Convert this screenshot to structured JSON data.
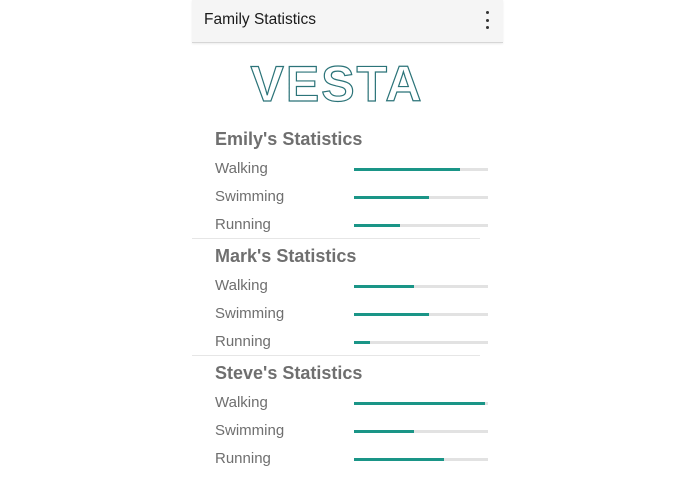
{
  "appbar": {
    "title": "Family Statistics",
    "menu_icon": "more-vert-icon"
  },
  "logo": {
    "text": "VESTA",
    "color": "#2c7479"
  },
  "accent_color": "#1a9587",
  "track_color": "#e2e2e2",
  "sections": [
    {
      "title": "Emily's Statistics",
      "stats": [
        {
          "label": "Walking",
          "progress": 0.79
        },
        {
          "label": "Swimming",
          "progress": 0.56
        },
        {
          "label": "Running",
          "progress": 0.34
        }
      ]
    },
    {
      "title": "Mark's Statistics",
      "stats": [
        {
          "label": "Walking",
          "progress": 0.45
        },
        {
          "label": "Swimming",
          "progress": 0.56
        },
        {
          "label": "Running",
          "progress": 0.12
        }
      ]
    },
    {
      "title": "Steve's Statistics",
      "stats": [
        {
          "label": "Walking",
          "progress": 0.98
        },
        {
          "label": "Swimming",
          "progress": 0.45
        },
        {
          "label": "Running",
          "progress": 0.67
        }
      ]
    }
  ]
}
